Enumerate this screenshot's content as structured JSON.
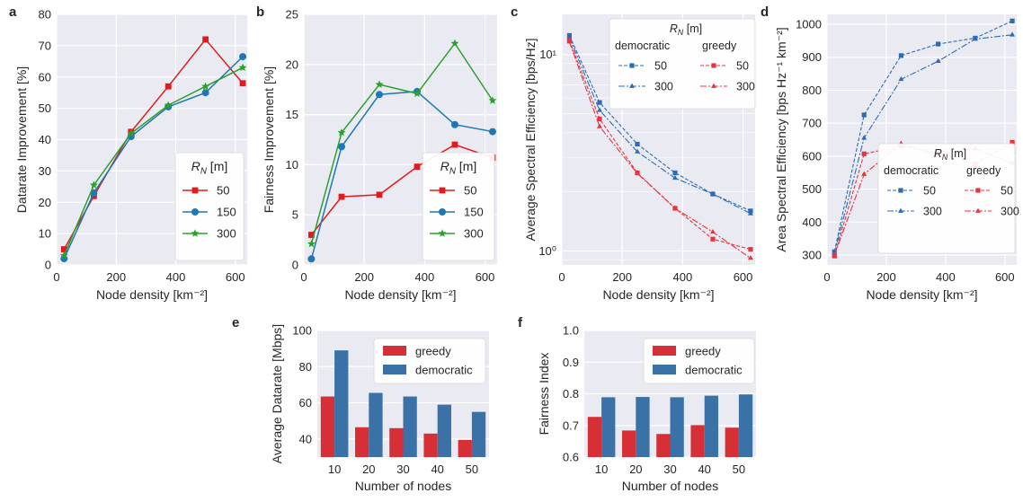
{
  "chart_data": [
    {
      "type": "line",
      "panel_letter": "a",
      "xlabel": "Node density [km⁻²]",
      "ylabel": "Datarate Improvement [%]",
      "xlim": [
        0,
        640
      ],
      "ylim": [
        0,
        80
      ],
      "xticks": [
        0,
        200,
        400,
        600
      ],
      "yticks": [
        0,
        10,
        20,
        30,
        40,
        50,
        60,
        70,
        80
      ],
      "grid": true,
      "legend": {
        "title": "R_N [m]",
        "placement": "lower-right"
      },
      "x": [
        25,
        125,
        250,
        375,
        500,
        625
      ],
      "series": [
        {
          "name": "50",
          "color": "#e31a1c",
          "marker": "square",
          "values": [
            5,
            22,
            42.5,
            57,
            72,
            58
          ]
        },
        {
          "name": "150",
          "color": "#1f77b4",
          "marker": "circle",
          "values": [
            2,
            23,
            41,
            50.5,
            55,
            66.5
          ]
        },
        {
          "name": "300",
          "color": "#2ca02c",
          "marker": "star",
          "values": [
            3,
            25.5,
            42,
            51,
            57,
            63
          ]
        }
      ]
    },
    {
      "type": "line",
      "panel_letter": "b",
      "xlabel": "Node density [km⁻²]",
      "ylabel": "Fairness Improvement [%]",
      "xlim": [
        0,
        640
      ],
      "ylim": [
        0,
        25
      ],
      "xticks": [
        0,
        200,
        400,
        600
      ],
      "yticks": [
        0,
        5,
        10,
        15,
        20,
        25
      ],
      "grid": true,
      "legend": {
        "title": "R_N [m]",
        "placement": "lower-right"
      },
      "x": [
        25,
        125,
        250,
        375,
        500,
        625
      ],
      "series": [
        {
          "name": "50",
          "color": "#e31a1c",
          "marker": "square",
          "values": [
            3,
            6.8,
            7,
            9.8,
            12,
            10.7
          ]
        },
        {
          "name": "150",
          "color": "#1f77b4",
          "marker": "circle",
          "values": [
            0.6,
            11.8,
            17,
            17.3,
            14,
            13.3
          ]
        },
        {
          "name": "300",
          "color": "#2ca02c",
          "marker": "star",
          "values": [
            2.1,
            13.2,
            18,
            17.1,
            22.1,
            16.4
          ]
        }
      ]
    },
    {
      "type": "line",
      "panel_letter": "c",
      "xlabel": "Node density [km⁻²]",
      "ylabel": "Average Spectral Efficiency [bps/Hz]",
      "yscale": "log",
      "xlim": [
        0,
        640
      ],
      "ylim": [
        0.85,
        16
      ],
      "xticks": [
        0,
        200,
        400,
        600
      ],
      "yticks": [
        1,
        10
      ],
      "ytick_labels": [
        "10⁰",
        "10¹"
      ],
      "grid": true,
      "legend": {
        "title": "R_N [m]",
        "placement": "top-right",
        "group_labels": [
          "democratic",
          "greedy"
        ]
      },
      "x": [
        25,
        125,
        250,
        375,
        500,
        625
      ],
      "series": [
        {
          "name": "50",
          "group": "democratic",
          "color": "#2b6cb5",
          "marker": "square",
          "dash": "4,2",
          "values": [
            12.5,
            5.7,
            3.5,
            2.5,
            1.95,
            1.6
          ]
        },
        {
          "name": "300",
          "group": "democratic",
          "color": "#2b6cb5",
          "marker": "triangle",
          "dash": "7,2,2,2",
          "values": [
            12.2,
            5.2,
            3.2,
            2.35,
            1.95,
            1.55
          ]
        },
        {
          "name": "50",
          "group": "greedy",
          "color": "#e8343c",
          "marker": "square",
          "dash": "4,2",
          "values": [
            11.8,
            4.7,
            2.5,
            1.65,
            1.15,
            1.02
          ]
        },
        {
          "name": "300",
          "group": "greedy",
          "color": "#e8343c",
          "marker": "triangle",
          "dash": "7,2,2,2",
          "values": [
            11.6,
            4.3,
            2.48,
            1.65,
            1.25,
            0.92
          ]
        }
      ]
    },
    {
      "type": "line",
      "panel_letter": "d",
      "xlabel": "Node density [km⁻²]",
      "ylabel": "Area Spectral Efficiency [bps Hz⁻¹ km⁻²]",
      "xlim": [
        0,
        640
      ],
      "ylim": [
        270,
        1030
      ],
      "xticks": [
        0,
        200,
        400,
        600
      ],
      "yticks": [
        300,
        400,
        500,
        600,
        700,
        800,
        900,
        1000
      ],
      "grid": true,
      "legend": {
        "title": "R_N [m]",
        "placement": "lower-right",
        "group_labels": [
          "democratic",
          "greedy"
        ]
      },
      "x": [
        25,
        125,
        250,
        375,
        500,
        625
      ],
      "series": [
        {
          "name": "50",
          "group": "democratic",
          "color": "#2b6cb5",
          "marker": "square",
          "dash": "4,2",
          "values": [
            310,
            725,
            905,
            940,
            958,
            1010
          ]
        },
        {
          "name": "300",
          "group": "democratic",
          "color": "#2b6cb5",
          "marker": "triangle",
          "dash": "7,2,2,2",
          "values": [
            305,
            655,
            833,
            888,
            955,
            968
          ]
        },
        {
          "name": "50",
          "group": "greedy",
          "color": "#e8343c",
          "marker": "square",
          "dash": "4,2",
          "values": [
            297,
            607,
            630,
            612,
            576,
            642
          ]
        },
        {
          "name": "300",
          "group": "greedy",
          "color": "#e8343c",
          "marker": "triangle",
          "dash": "7,2,2,2",
          "values": [
            300,
            545,
            638,
            603,
            623,
            578
          ]
        }
      ]
    },
    {
      "type": "bar",
      "panel_letter": "e",
      "xlabel": "Number of nodes",
      "ylabel": "Average Datarate [Mbps]",
      "categories": [
        "10",
        "20",
        "30",
        "40",
        "50"
      ],
      "ylim": [
        30,
        100
      ],
      "yticks": [
        40,
        60,
        80,
        100
      ],
      "grid": true,
      "legend": {
        "placement": "top-right"
      },
      "series": [
        {
          "name": "greedy",
          "color": "#d62f35",
          "values": [
            63.5,
            46.5,
            46,
            43,
            39.5
          ]
        },
        {
          "name": "democratic",
          "color": "#3a72a8",
          "values": [
            89,
            65.5,
            63.5,
            59,
            55
          ]
        }
      ]
    },
    {
      "type": "bar",
      "panel_letter": "f",
      "xlabel": "Number of nodes",
      "ylabel": "Fairness Index",
      "categories": [
        "10",
        "20",
        "30",
        "40",
        "50"
      ],
      "ylim": [
        0.6,
        1.0
      ],
      "yticks": [
        0.6,
        0.7,
        0.8,
        0.9,
        1.0
      ],
      "ytick_labels": [
        "0.6",
        "0.7",
        "0.8",
        "0.9",
        "1.0"
      ],
      "grid": true,
      "legend": {
        "placement": "top-right"
      },
      "series": [
        {
          "name": "greedy",
          "color": "#d62f35",
          "values": [
            0.727,
            0.684,
            0.673,
            0.701,
            0.693
          ]
        },
        {
          "name": "democratic",
          "color": "#3a72a8",
          "values": [
            0.789,
            0.79,
            0.789,
            0.794,
            0.798
          ]
        }
      ]
    }
  ]
}
